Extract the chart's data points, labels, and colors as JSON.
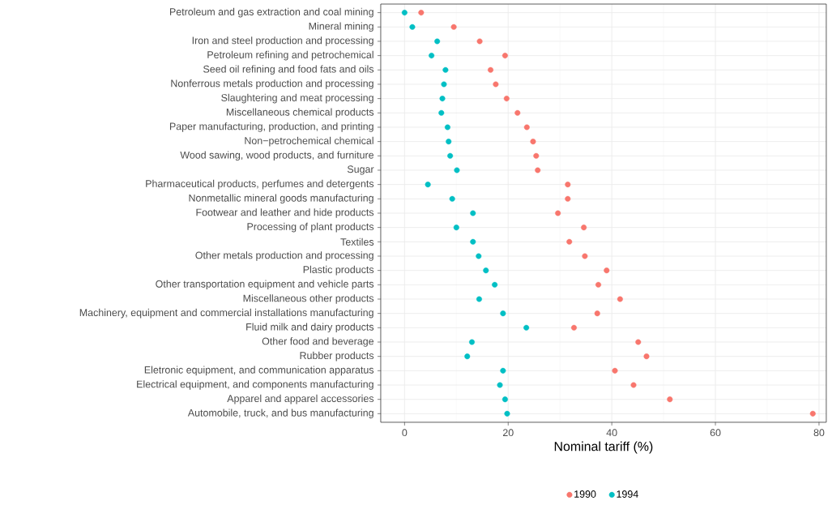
{
  "chart_data": {
    "type": "scatter",
    "xlabel": "Nominal tariff (%)",
    "categories": [
      "Petroleum and gas extraction and coal mining",
      "Mineral mining",
      "Iron and steel production and processing",
      "Petroleum refining and petrochemical",
      "Seed oil refining and food fats and oils",
      "Nonferrous metals production and processing",
      "Slaughtering and meat processing",
      "Miscellaneous chemical products",
      "Paper manufacturing, production, and printing",
      "Non−petrochemical chemical",
      "Wood sawing, wood products, and furniture",
      "Sugar",
      "Pharmaceutical products, perfumes and detergents",
      "Nonmetallic mineral goods manufacturing",
      "Footwear and leather and hide products",
      "Processing of plant products",
      "Textiles",
      "Other metals production and processing",
      "Plastic products",
      "Other transportation equipment and vehicle parts",
      "Miscellaneous other products",
      "Machinery, equipment and commercial installations manufacturing",
      "Fluid milk and dairy products",
      "Other food and beverage",
      "Rubber products",
      "Eletronic equipment, and communication apparatus",
      "Electrical equipment, and components manufacturing",
      "Apparel and apparel accessories",
      "Automobile, truck, and bus manufacturing"
    ],
    "series": [
      {
        "name": "1990",
        "color": "#f8766d",
        "values": [
          3.2,
          9.5,
          14.5,
          19.4,
          16.6,
          17.6,
          19.7,
          21.8,
          23.6,
          24.8,
          25.4,
          25.7,
          31.5,
          31.5,
          29.6,
          34.6,
          31.8,
          34.8,
          39.0,
          37.4,
          41.6,
          37.2,
          32.7,
          45.1,
          46.7,
          40.6,
          44.2,
          51.2,
          78.8
        ]
      },
      {
        "name": "1994",
        "color": "#00bfc4",
        "values": [
          0.0,
          1.5,
          6.3,
          5.2,
          7.9,
          7.6,
          7.3,
          7.1,
          8.3,
          8.5,
          8.8,
          10.1,
          4.5,
          9.2,
          13.2,
          10.0,
          13.2,
          14.3,
          15.7,
          17.4,
          14.4,
          19.0,
          23.5,
          13.0,
          12.1,
          19.0,
          18.4,
          19.4,
          19.8
        ]
      }
    ],
    "orientation": "horizontal",
    "xlim": [
      -4.6,
      81.4
    ],
    "xticks": [
      0,
      20,
      40,
      60,
      80
    ],
    "grid": true,
    "legend": "bottom",
    "marker": "circle"
  }
}
